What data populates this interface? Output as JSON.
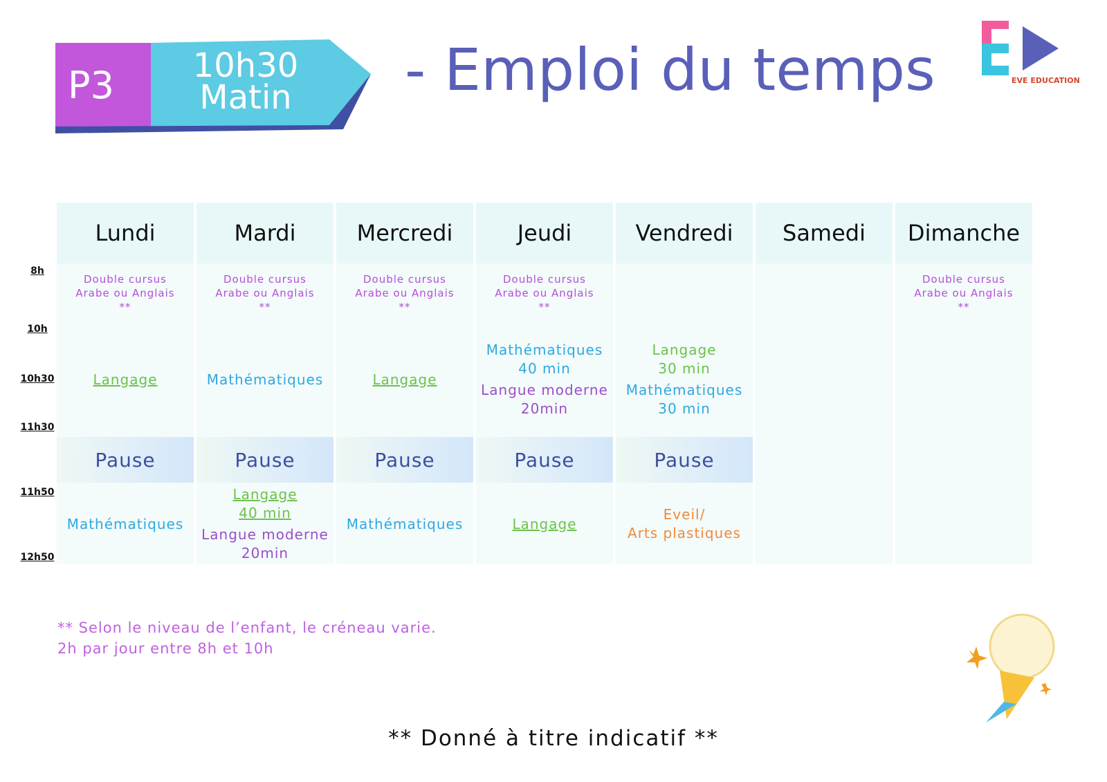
{
  "header": {
    "badge": "P3",
    "session": [
      "10h30",
      "Matin"
    ],
    "title": "- Emploi du temps",
    "logo": "EVE EDUCATION"
  },
  "timetable": {
    "times": [
      "8h",
      "10h",
      "10h30",
      "11h30",
      "11h50",
      "12h50"
    ],
    "days": [
      {
        "name": "Lundi",
        "slots": [
          {
            "blocks": [
              {
                "lines": [
                  "Double cursus",
                  "Arabe ou Anglais",
                  "**"
                ],
                "color": "#b44fd6"
              }
            ]
          },
          {
            "blocks": [
              {
                "lines": [
                  "Langage"
                ],
                "color": "#6cc24a",
                "underline": true
              }
            ]
          },
          {
            "blocks": [
              {
                "lines": [
                  "Pause"
                ],
                "color": "#3d4ea0"
              }
            ]
          },
          {
            "blocks": [
              {
                "lines": [
                  "Mathématiques"
                ],
                "color": "#2fa8e0"
              }
            ]
          }
        ]
      },
      {
        "name": "Mardi",
        "slots": [
          {
            "blocks": [
              {
                "lines": [
                  "Double cursus",
                  "Arabe ou Anglais",
                  "**"
                ],
                "color": "#b44fd6"
              }
            ]
          },
          {
            "blocks": [
              {
                "lines": [
                  "Mathématiques"
                ],
                "color": "#2fa8e0"
              }
            ]
          },
          {
            "blocks": [
              {
                "lines": [
                  "Pause"
                ],
                "color": "#3d4ea0"
              }
            ]
          },
          {
            "blocks": [
              {
                "lines": [
                  "Langage",
                  "40 min"
                ],
                "color": "#6cc24a",
                "underline": true
              },
              {
                "lines": [
                  "Langue moderne",
                  "20min"
                ],
                "color": "#9b4fc8"
              }
            ]
          }
        ]
      },
      {
        "name": "Mercredi",
        "slots": [
          {
            "blocks": [
              {
                "lines": [
                  "Double cursus",
                  "Arabe ou Anglais",
                  "**"
                ],
                "color": "#b44fd6"
              }
            ]
          },
          {
            "blocks": [
              {
                "lines": [
                  "Langage"
                ],
                "color": "#6cc24a",
                "underline": true
              }
            ]
          },
          {
            "blocks": [
              {
                "lines": [
                  "Pause"
                ],
                "color": "#3d4ea0"
              }
            ]
          },
          {
            "blocks": [
              {
                "lines": [
                  "Mathématiques"
                ],
                "color": "#2fa8e0"
              }
            ]
          }
        ]
      },
      {
        "name": "Jeudi",
        "slots": [
          {
            "blocks": [
              {
                "lines": [
                  "Double cursus",
                  "Arabe ou Anglais",
                  "**"
                ],
                "color": "#b44fd6"
              }
            ]
          },
          {
            "blocks": [
              {
                "lines": [
                  "Mathématiques",
                  "40 min"
                ],
                "color": "#2fa8e0"
              },
              {
                "lines": [
                  "Langue moderne",
                  "20min"
                ],
                "color": "#9b4fc8"
              }
            ]
          },
          {
            "blocks": [
              {
                "lines": [
                  "Pause"
                ],
                "color": "#3d4ea0"
              }
            ]
          },
          {
            "blocks": [
              {
                "lines": [
                  "Langage"
                ],
                "color": "#6cc24a",
                "underline": true
              }
            ]
          }
        ]
      },
      {
        "name": "Vendredi",
        "slots": [
          null,
          {
            "blocks": [
              {
                "lines": [
                  "Langage",
                  "30 min"
                ],
                "color": "#6cc24a"
              },
              {
                "lines": [
                  "Mathématiques",
                  "30 min"
                ],
                "color": "#2fa8e0"
              }
            ]
          },
          {
            "blocks": [
              {
                "lines": [
                  "Pause"
                ],
                "color": "#3d4ea0"
              }
            ]
          },
          {
            "blocks": [
              {
                "lines": [
                  "Eveil/",
                  "Arts plastiques"
                ],
                "color": "#f08a3c"
              }
            ]
          }
        ]
      },
      {
        "name": "Samedi",
        "slots": [
          null,
          null,
          null,
          null
        ]
      },
      {
        "name": "Dimanche",
        "slots": [
          {
            "blocks": [
              {
                "lines": [
                  "Double cursus",
                  "Arabe ou Anglais",
                  "**"
                ],
                "color": "#b44fd6"
              }
            ]
          },
          null,
          null,
          null
        ]
      }
    ]
  },
  "notes": [
    "** Selon le niveau de l’enfant, le créneau varie.",
    "2h par jour entre 8h et 10h"
  ],
  "footer": "** Donné à titre indicatif **"
}
